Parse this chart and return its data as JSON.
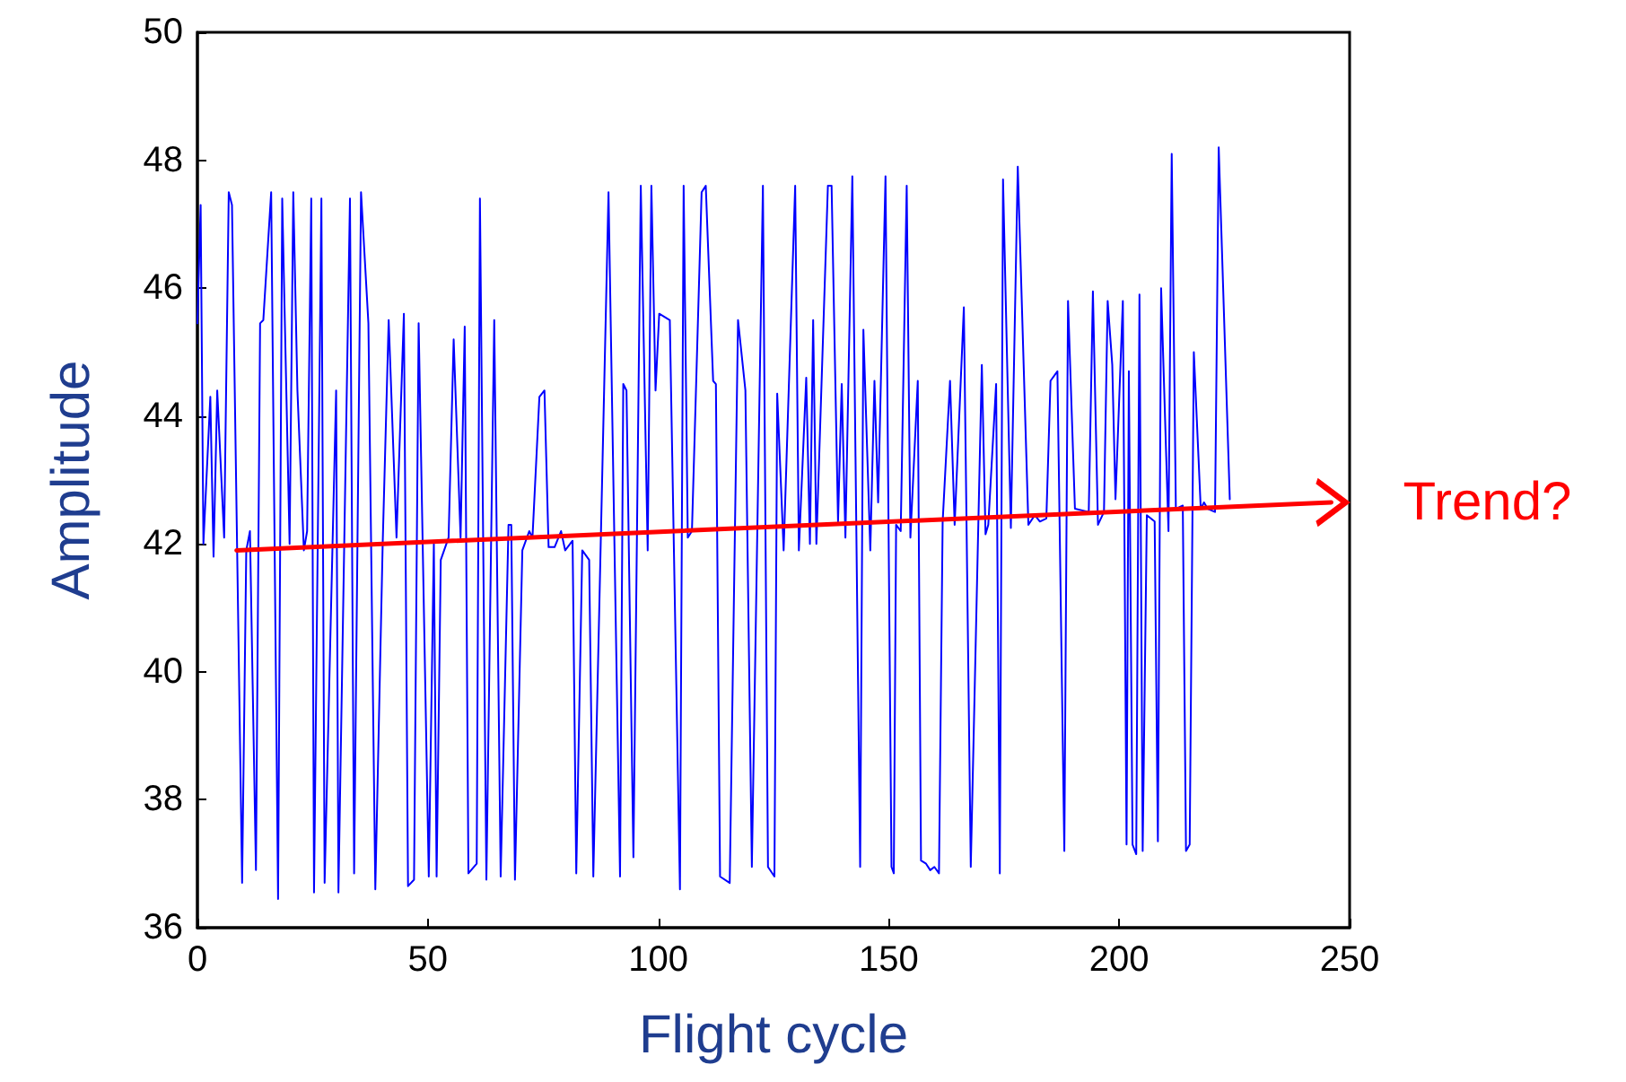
{
  "chart_data": {
    "type": "line",
    "xlabel": "Flight cycle",
    "ylabel": "Amplitude",
    "xlim": [
      0,
      250
    ],
    "xticks": [
      0,
      50,
      100,
      150,
      200,
      250
    ],
    "ylim": [
      36,
      50
    ],
    "yticks": [
      36,
      38,
      40,
      42,
      44,
      46,
      48,
      50
    ],
    "grid": false,
    "line_style": "solid",
    "annotations": [
      {
        "text": "Trend?",
        "x": 246,
        "y": 42.65
      }
    ],
    "series": [
      {
        "color": "#0000ff",
        "x": [
          0,
          0.7,
          1.3,
          2.8,
          3.5,
          4.3,
          5.8,
          6.8,
          7.5,
          9.7,
          10.6,
          11.4,
          12.7,
          13.6,
          14.3,
          16,
          17.5,
          18.4,
          20,
          20.8,
          21.7,
          23.1,
          23.8,
          24.7,
          25.3,
          26.9,
          27.6,
          30.1,
          30.6,
          33.1,
          34,
          35.5,
          37.1,
          38.6,
          40.2,
          41.5,
          43.2,
          44.8,
          45.7,
          47,
          48,
          50.2,
          51.3,
          51.9,
          52.8,
          54.5,
          55.6,
          57.1,
          58,
          58.8,
          60.6,
          61.3,
          62.7,
          64.4,
          65.8,
          67.5,
          68.1,
          68.9,
          70.5,
          72,
          72.7,
          74.2,
          75.3,
          76.2,
          77.5,
          78.9,
          79.8,
          81.4,
          82.2,
          83.5,
          85,
          85.9,
          89.2,
          91.7,
          92.4,
          93.1,
          94.6,
          96.2,
          97.7,
          98.5,
          99.4,
          100.2,
          102.5,
          104.7,
          105.5,
          106.4,
          107.3,
          109.4,
          110.3,
          111.9,
          112.5,
          113.4,
          115.5,
          117.3,
          118.9,
          120.3,
          122.7,
          123.8,
          125.2,
          125.8,
          127.2,
          129.7,
          130.5,
          132.1,
          132.9,
          133.6,
          134.3,
          136.8,
          137.6,
          139,
          139.8,
          140.6,
          142.1,
          143.8,
          144.5,
          146,
          146.9,
          147.7,
          149.3,
          150.6,
          151.1,
          151.6,
          152.6,
          153.9,
          154.7,
          156.3,
          157,
          158.1,
          159,
          159.9,
          160.9,
          161.7,
          163.3,
          164.3,
          166.3,
          167.8,
          170.2,
          171,
          171.6,
          173.3,
          174.1,
          174.8,
          176.5,
          178,
          180.3,
          181.7,
          182.8,
          184.2,
          185.1,
          186.6,
          188.1,
          188.9,
          190.4,
          193.4,
          194.3,
          195.4,
          196.7,
          197.5,
          198.5,
          199.2,
          200.8,
          201.6,
          202.1,
          202.9,
          203.7,
          204.4,
          205.1,
          206,
          207.7,
          208.4,
          209.1,
          210.7,
          211.4,
          212.3,
          213.8,
          214.5,
          215.3,
          216.2,
          217.7,
          218.4,
          219.2,
          220.8,
          221.6,
          224
        ],
        "values": [
          45.45,
          47.3,
          42,
          44.3,
          41.8,
          44.4,
          42.1,
          47.5,
          47.3,
          36.7,
          41.9,
          42.2,
          36.9,
          45.45,
          45.5,
          47.5,
          36.45,
          47.4,
          42,
          47.5,
          44.4,
          41.9,
          42.2,
          47.4,
          36.55,
          47.4,
          36.7,
          44.4,
          36.55,
          47.4,
          36.85,
          47.5,
          45.45,
          36.6,
          42,
          45.5,
          42.1,
          45.6,
          36.65,
          36.75,
          45.45,
          36.8,
          42,
          36.8,
          41.75,
          42.1,
          45.2,
          42.1,
          45.4,
          36.85,
          37,
          47.4,
          36.75,
          45.5,
          36.8,
          42.3,
          42.3,
          36.75,
          41.9,
          42.2,
          42.1,
          44.3,
          44.4,
          41.95,
          41.95,
          42.2,
          41.9,
          42.05,
          36.85,
          41.9,
          41.75,
          36.8,
          47.5,
          36.8,
          44.5,
          44.4,
          37.1,
          47.6,
          41.9,
          47.6,
          44.4,
          45.6,
          45.5,
          36.6,
          47.6,
          42.1,
          42.2,
          47.5,
          47.6,
          44.55,
          44.5,
          36.8,
          36.7,
          45.5,
          44.4,
          36.95,
          47.6,
          36.95,
          36.8,
          44.35,
          41.9,
          47.6,
          41.9,
          44.6,
          42,
          45.5,
          42,
          47.6,
          47.6,
          42.35,
          44.5,
          42.1,
          47.75,
          36.95,
          45.35,
          41.9,
          44.55,
          42.65,
          47.75,
          36.95,
          36.85,
          42.3,
          42.2,
          47.6,
          42.1,
          44.55,
          37.05,
          37,
          36.9,
          36.95,
          36.85,
          42.35,
          44.55,
          42.3,
          45.7,
          36.95,
          44.8,
          42.15,
          42.3,
          44.5,
          36.85,
          47.7,
          42.25,
          47.9,
          42.3,
          42.45,
          42.35,
          42.4,
          44.55,
          44.7,
          37.2,
          45.8,
          42.55,
          42.5,
          45.95,
          42.3,
          42.5,
          45.8,
          44.8,
          42.7,
          45.8,
          37.3,
          44.7,
          37.3,
          37.15,
          45.9,
          37.2,
          42.45,
          42.35,
          37.35,
          46,
          42.2,
          48.1,
          42.55,
          42.6,
          37.2,
          37.3,
          45,
          42.55,
          42.65,
          42.55,
          42.5,
          48.2,
          42.7
        ]
      },
      {
        "type": "line",
        "color": "#ff0000",
        "x": [
          8.5,
          246
        ],
        "values": [
          41.9,
          42.65
        ]
      }
    ]
  }
}
